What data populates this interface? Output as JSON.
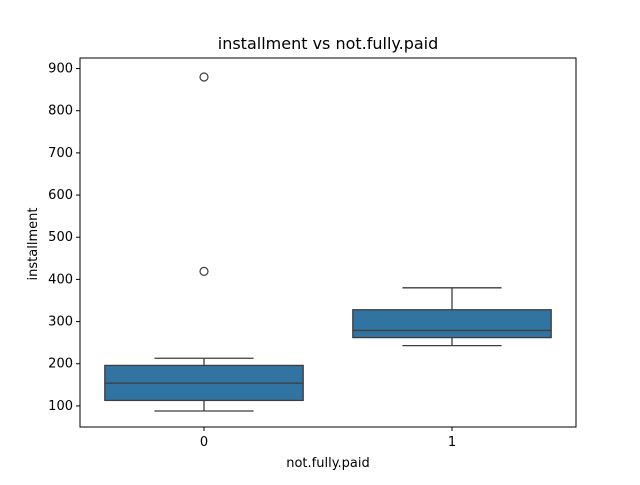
{
  "chart_data": {
    "type": "box",
    "title": "installment vs not.fully.paid",
    "xlabel": "not.fully.paid",
    "ylabel": "installment",
    "categories": [
      "0",
      "1"
    ],
    "ylim": [
      50,
      925
    ],
    "yticks": [
      "100",
      "200",
      "300",
      "400",
      "500",
      "600",
      "700",
      "800",
      "900"
    ],
    "grid": false,
    "boxes": [
      {
        "category": "0",
        "whisker_low": 88,
        "q1": 113,
        "median": 154,
        "q3": 196,
        "whisker_high": 213,
        "outliers": [
          419,
          880
        ]
      },
      {
        "category": "1",
        "whisker_low": 243,
        "q1": 262,
        "median": 279,
        "q3": 328,
        "whisker_high": 380,
        "outliers": []
      }
    ],
    "box_color": "#3274a1",
    "line_color": "#3d3d3d"
  }
}
